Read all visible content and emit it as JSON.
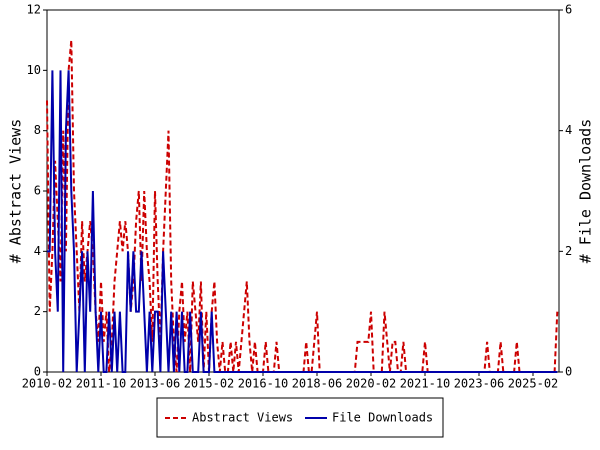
{
  "chart_data": {
    "type": "line",
    "y_label": "# Abstract Views",
    "y2_label": "# File Downloads",
    "categories": [
      "2010-02",
      null,
      null,
      null,
      null,
      null,
      null,
      null,
      null,
      null,
      null,
      null,
      null,
      null,
      null,
      null,
      null,
      null,
      null,
      null,
      "2011-10",
      null,
      null,
      null,
      null,
      null,
      null,
      null,
      null,
      null,
      null,
      null,
      null,
      null,
      null,
      null,
      null,
      null,
      null,
      null,
      "2013-06",
      null,
      null,
      null,
      null,
      null,
      null,
      null,
      null,
      null,
      null,
      null,
      null,
      null,
      null,
      null,
      null,
      null,
      null,
      null,
      "2015-02",
      null,
      null,
      null,
      null,
      null,
      null,
      null,
      null,
      null,
      null,
      null,
      null,
      null,
      null,
      null,
      null,
      null,
      null,
      null,
      "2016-10",
      null,
      null,
      null,
      null,
      null,
      null,
      null,
      null,
      null,
      null,
      null,
      null,
      null,
      null,
      null,
      null,
      null,
      null,
      null,
      "2018-06",
      null,
      null,
      null,
      null,
      null,
      null,
      null,
      null,
      null,
      null,
      null,
      null,
      null,
      null,
      null,
      null,
      null,
      null,
      null,
      "2020-02",
      null,
      null,
      null,
      null,
      null,
      null,
      null,
      null,
      null,
      null,
      null,
      null,
      null,
      null,
      null,
      null,
      null,
      null,
      null,
      "2021-10",
      null,
      null,
      null,
      null,
      null,
      null,
      null,
      null,
      null,
      null,
      null,
      null,
      null,
      null,
      null,
      null,
      null,
      null,
      null,
      "2023-06",
      null,
      null,
      null,
      null,
      null,
      null,
      null,
      null,
      null,
      null,
      null,
      null,
      null,
      null,
      null,
      null,
      null,
      null,
      null,
      "2025-02",
      null,
      null,
      null,
      null,
      null,
      null,
      null,
      null,
      null
    ],
    "series": [
      {
        "name": "Abstract Views",
        "color": "#cc0000",
        "dash": true,
        "values": [
          9,
          2,
          4,
          7,
          5,
          3,
          8,
          4,
          10,
          11,
          6,
          4,
          2,
          5,
          3,
          4,
          5,
          4,
          2,
          1,
          3,
          1,
          2,
          0,
          1,
          3,
          4,
          5,
          4,
          5,
          4,
          2,
          3,
          5,
          6,
          3,
          6,
          4,
          3,
          1,
          6,
          3,
          1,
          4,
          6,
          8,
          3,
          1,
          0,
          2,
          3,
          1,
          2,
          0,
          3,
          2,
          1,
          3,
          0,
          2,
          0,
          2,
          3,
          1,
          0,
          1,
          0,
          0,
          1,
          0,
          1,
          0,
          1,
          2,
          3,
          1,
          0,
          1,
          0,
          0,
          0,
          1,
          0,
          0,
          0,
          1,
          0,
          0,
          0,
          0,
          0,
          0,
          0,
          0,
          0,
          0,
          1,
          0,
          0,
          1,
          2,
          0,
          0,
          0,
          0,
          0,
          0,
          0,
          0,
          0,
          0,
          0,
          0,
          0,
          0,
          1,
          1,
          1,
          1,
          1,
          2,
          0,
          0,
          0,
          0,
          2,
          1,
          0,
          1,
          1,
          0,
          0,
          1,
          0,
          0,
          0,
          0,
          0,
          0,
          0,
          1,
          0,
          0,
          0,
          0,
          0,
          0,
          0,
          0,
          0,
          0,
          0,
          0,
          0,
          0,
          0,
          0,
          0,
          0,
          0,
          0,
          0,
          0,
          1,
          0,
          0,
          0,
          0,
          1,
          0,
          0,
          0,
          0,
          0,
          1,
          0,
          0,
          0,
          0,
          0,
          0,
          0,
          0,
          0,
          0,
          0,
          0,
          0,
          0,
          2
        ]
      },
      {
        "name": "File Downloads",
        "color": "#0000aa",
        "dash": false,
        "axis": "y2",
        "values": [
          2,
          2,
          5,
          2,
          1,
          5,
          0,
          4,
          5,
          3,
          2,
          0,
          1,
          2,
          0,
          2,
          1,
          3,
          1,
          0,
          1,
          0,
          0,
          1,
          0,
          1,
          0,
          1,
          0,
          0,
          2,
          1,
          2,
          1,
          1,
          2,
          1,
          0,
          1,
          0,
          1,
          1,
          0,
          2,
          1,
          0,
          1,
          0,
          1,
          0,
          1,
          0,
          0,
          1,
          0,
          0,
          0,
          1,
          0,
          0,
          0,
          1,
          0,
          0,
          0,
          0,
          0,
          0,
          0,
          0,
          0,
          0,
          0,
          0,
          0,
          0,
          0,
          0,
          0,
          0,
          0,
          0,
          0,
          0,
          0,
          0,
          0,
          0,
          0,
          0,
          0,
          0,
          0,
          0,
          0,
          0,
          0,
          0,
          0,
          0,
          0,
          0,
          0,
          0,
          0,
          0,
          0,
          0,
          0,
          0,
          0,
          0,
          0,
          0,
          0,
          0,
          0,
          0,
          0,
          0,
          0,
          0,
          0,
          0,
          0,
          0,
          0,
          0,
          0,
          0,
          0,
          0,
          0,
          0,
          0,
          0,
          0,
          0,
          0,
          0,
          0,
          0,
          0,
          0,
          0,
          0,
          0,
          0,
          0,
          0,
          0,
          0,
          0,
          0,
          0,
          0,
          0,
          0,
          0,
          0,
          0,
          0,
          0,
          0,
          0,
          0,
          0,
          0,
          0,
          0,
          0,
          0,
          0,
          0,
          0,
          0,
          0,
          0,
          0,
          0,
          0,
          0,
          0,
          0,
          0,
          0,
          0,
          0,
          0,
          0
        ]
      }
    ],
    "ylim": [
      0,
      12
    ],
    "yticks": [
      0,
      2,
      4,
      6,
      8,
      10,
      12
    ],
    "y2lim": [
      0,
      6
    ],
    "y2ticks": [
      0,
      2,
      4,
      6
    ],
    "legend": "bottom"
  }
}
